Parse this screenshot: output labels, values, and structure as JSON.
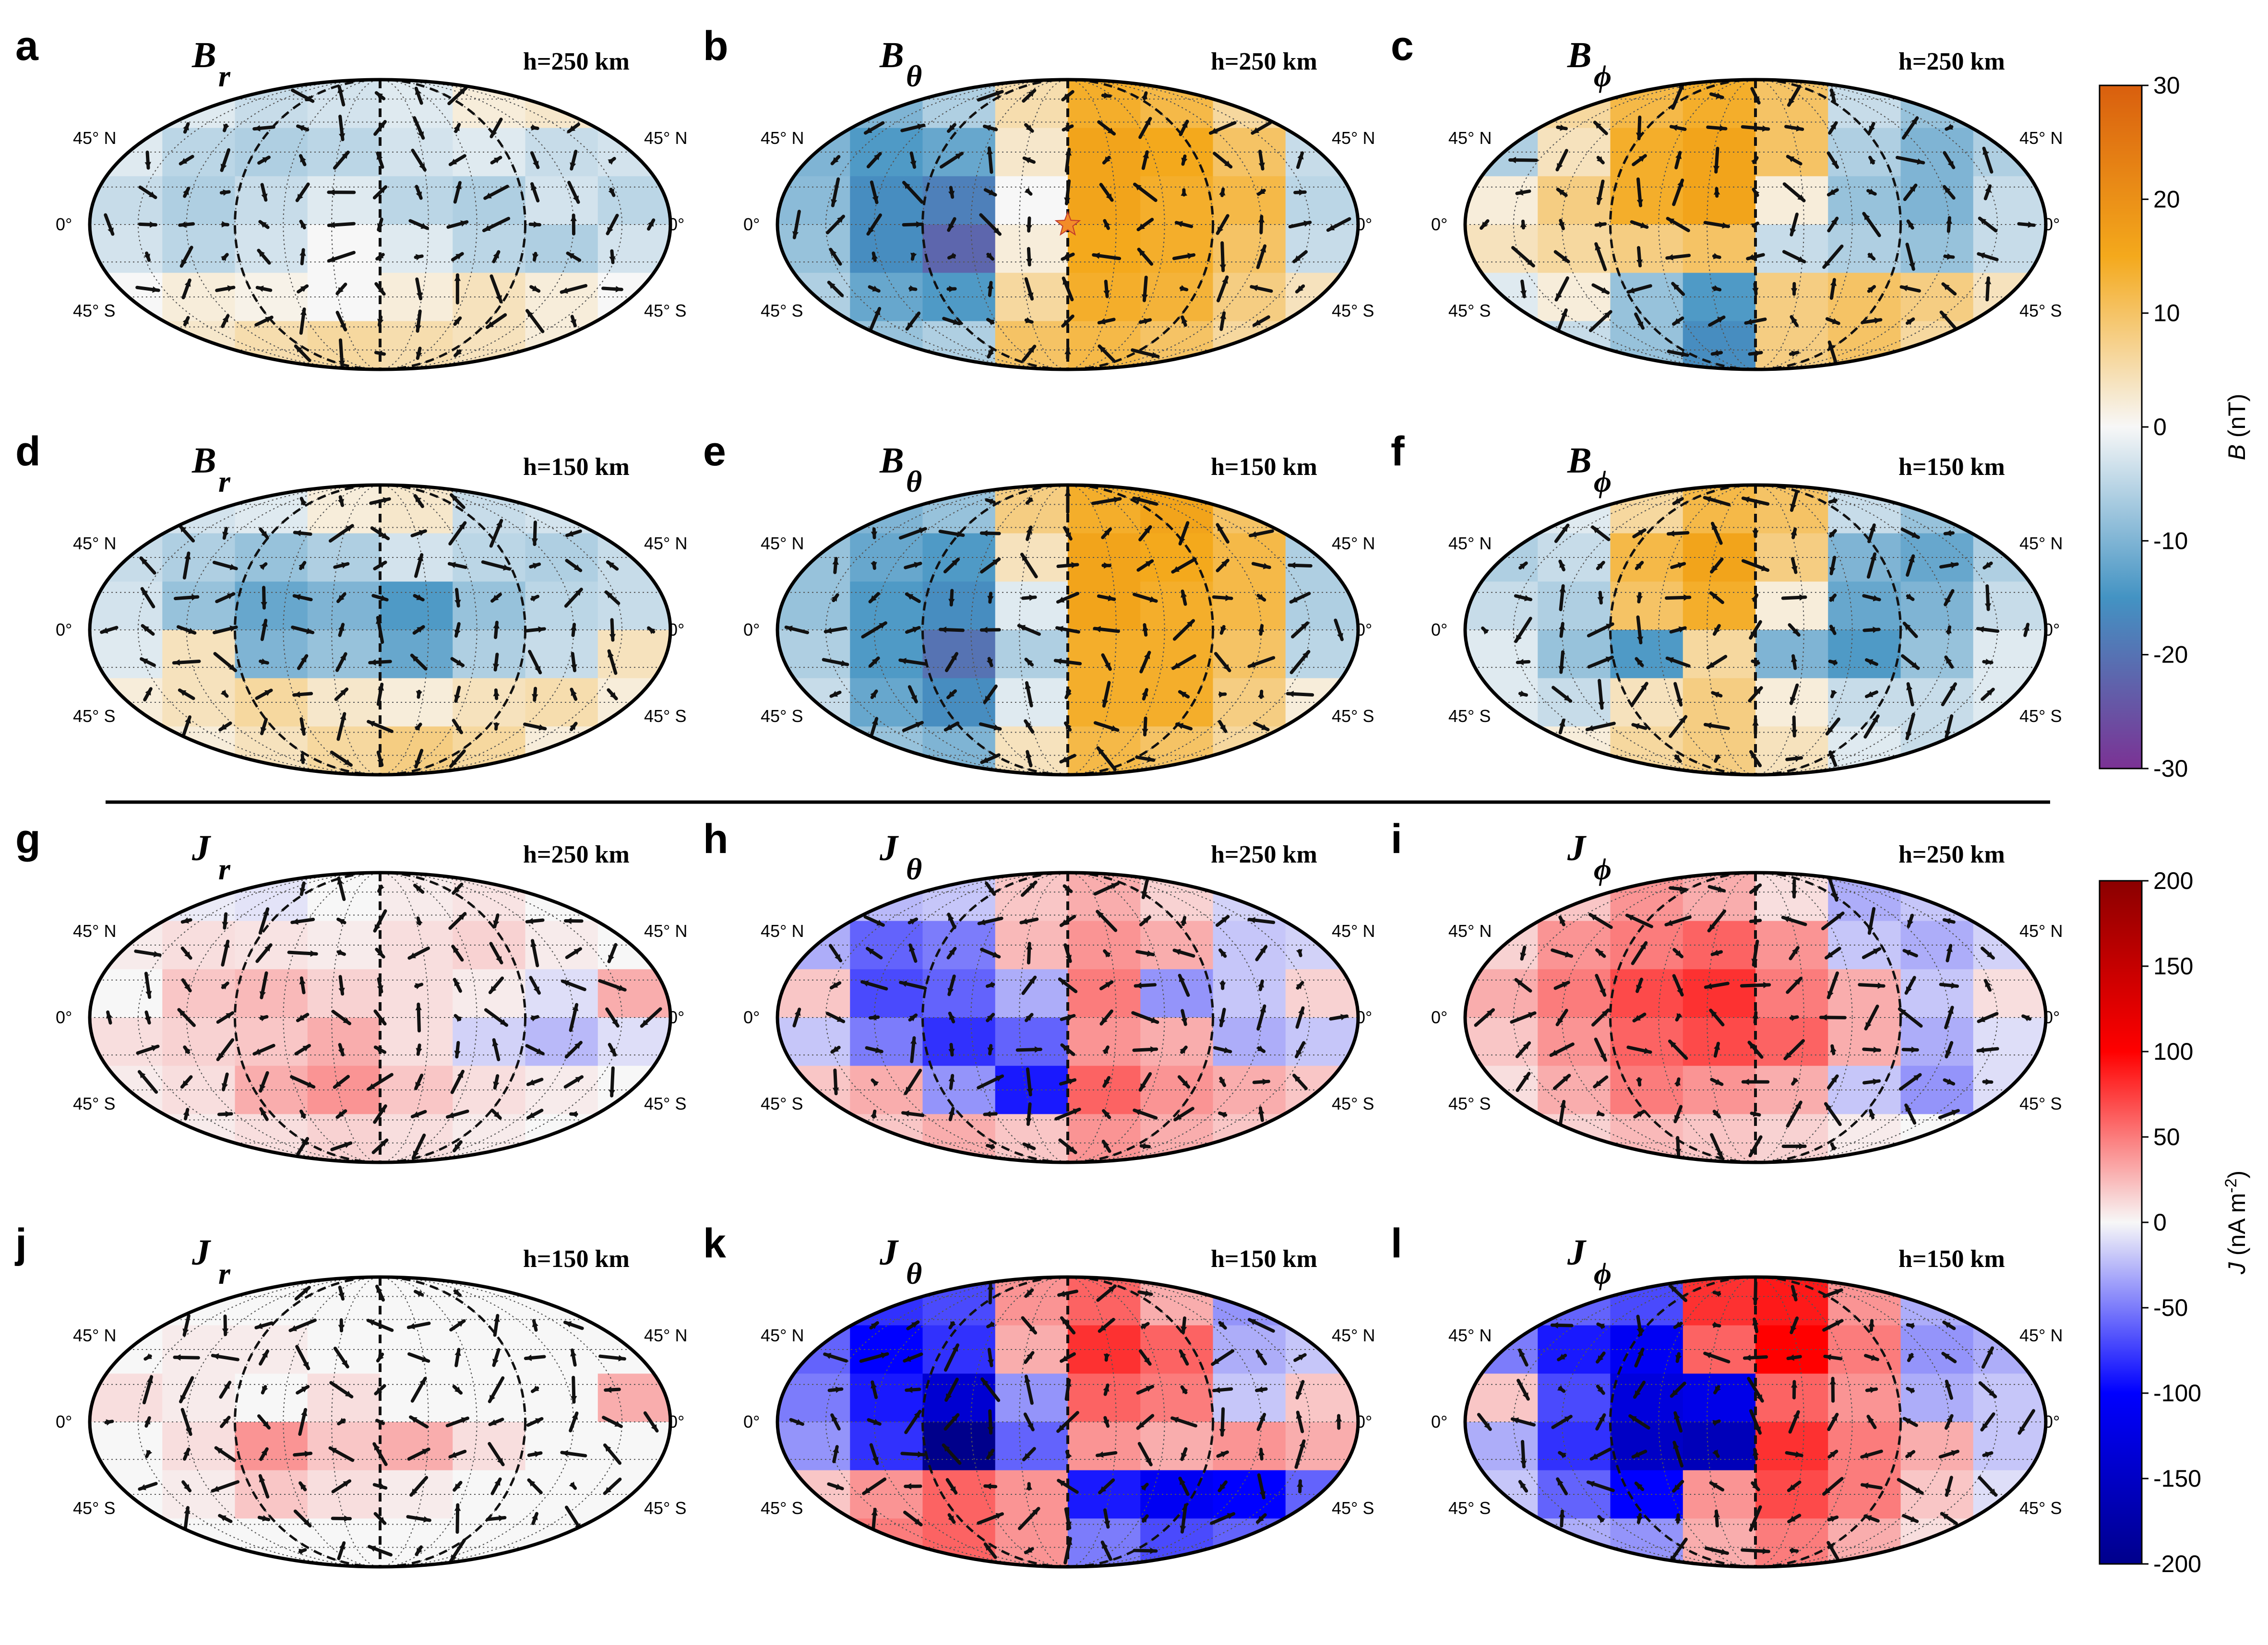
{
  "chart_data": {
    "type": "heatmap",
    "projection": "mollweide",
    "grid": true,
    "latitude_labels": [
      "45° N",
      "0°",
      "45° S"
    ],
    "colorbars": [
      {
        "id": "B",
        "label_var": "B",
        "label_unit": "(nT)",
        "range": [
          -30,
          30
        ],
        "ticks": [
          "30",
          "20",
          "10",
          "0",
          "-10",
          "-20",
          "-30"
        ],
        "colors": [
          "#7b3294",
          "#4393c3",
          "#f7f7f7",
          "#f4a91c",
          "#d95f0e"
        ]
      },
      {
        "id": "J",
        "label_var": "J",
        "label_unit": "(nA m",
        "label_sup": "-2",
        "label_close": ")",
        "range": [
          -200,
          200
        ],
        "ticks": [
          "200",
          "150",
          "100",
          "50",
          "0",
          "-50",
          "-100",
          "-150",
          "-200"
        ],
        "colors": [
          "#00008b",
          "#0000ff",
          "#f7f7f7",
          "#ff0000",
          "#8b0000"
        ]
      }
    ],
    "panels": [
      {
        "letter": "a",
        "comp": "B",
        "sub": "r",
        "height": "h=250 km",
        "cbar": "B"
      },
      {
        "letter": "b",
        "comp": "B",
        "sub": "θ",
        "height": "h=250 km",
        "cbar": "B",
        "marker": "star"
      },
      {
        "letter": "c",
        "comp": "B",
        "sub": "ϕ",
        "height": "h=250 km",
        "cbar": "B"
      },
      {
        "letter": "d",
        "comp": "B",
        "sub": "r",
        "height": "h=150 km",
        "cbar": "B"
      },
      {
        "letter": "e",
        "comp": "B",
        "sub": "θ",
        "height": "h=150 km",
        "cbar": "B"
      },
      {
        "letter": "f",
        "comp": "B",
        "sub": "ϕ",
        "height": "h=150 km",
        "cbar": "B"
      },
      {
        "letter": "g",
        "comp": "J",
        "sub": "r",
        "height": "h=250 km",
        "cbar": "J"
      },
      {
        "letter": "h",
        "comp": "J",
        "sub": "θ",
        "height": "h=250 km",
        "cbar": "J"
      },
      {
        "letter": "i",
        "comp": "J",
        "sub": "ϕ",
        "height": "h=250 km",
        "cbar": "J"
      },
      {
        "letter": "j",
        "comp": "J",
        "sub": "r",
        "height": "h=150 km",
        "cbar": "J"
      },
      {
        "letter": "k",
        "comp": "J",
        "sub": "θ",
        "height": "h=150 km",
        "cbar": "J"
      },
      {
        "letter": "l",
        "comp": "J",
        "sub": "ϕ",
        "height": "h=150 km",
        "cbar": "J"
      }
    ],
    "fields": {
      "a": [
        [
          0,
          -2,
          -4,
          -3,
          -2,
          2,
          3,
          -2
        ],
        [
          -2,
          -5,
          -6,
          -5,
          -3,
          -2,
          -4,
          -3
        ],
        [
          -4,
          -6,
          -4,
          -2,
          -5,
          -6,
          -3,
          -5
        ],
        [
          -3,
          -5,
          -3,
          0,
          -2,
          -5,
          -6,
          -3
        ],
        [
          0,
          2,
          1,
          0,
          2,
          4,
          2,
          0
        ],
        [
          1,
          3,
          5,
          6,
          5,
          4,
          2,
          1
        ]
      ],
      "b": [
        [
          -8,
          -10,
          -6,
          5,
          14,
          12,
          6,
          -3
        ],
        [
          -10,
          -14,
          -12,
          3,
          16,
          15,
          10,
          -4
        ],
        [
          -9,
          -16,
          -18,
          0,
          16,
          14,
          12,
          -5
        ],
        [
          -8,
          -16,
          -22,
          2,
          15,
          14,
          10,
          -4
        ],
        [
          -6,
          -12,
          -14,
          6,
          14,
          13,
          8,
          4
        ],
        [
          -3,
          -8,
          -6,
          10,
          12,
          10,
          6,
          10
        ]
      ],
      "c": [
        [
          -4,
          6,
          12,
          14,
          10,
          -4,
          -8,
          -6
        ],
        [
          -6,
          4,
          14,
          16,
          10,
          -6,
          -10,
          -6
        ],
        [
          2,
          8,
          14,
          16,
          2,
          -8,
          -10,
          -4
        ],
        [
          4,
          6,
          8,
          10,
          -4,
          -6,
          -8,
          -4
        ],
        [
          -2,
          2,
          -8,
          -14,
          8,
          10,
          8,
          4
        ],
        [
          0,
          -4,
          -8,
          -16,
          8,
          10,
          6,
          2
        ]
      ],
      "d": [
        [
          -2,
          -3,
          -2,
          2,
          3,
          -4,
          -3,
          -2
        ],
        [
          -4,
          -6,
          -8,
          -6,
          -3,
          -5,
          -6,
          -4
        ],
        [
          -3,
          -8,
          -12,
          -10,
          -14,
          -8,
          -5,
          -4
        ],
        [
          -2,
          4,
          -10,
          -8,
          -12,
          -6,
          -4,
          4
        ],
        [
          2,
          4,
          6,
          3,
          2,
          4,
          5,
          2
        ],
        [
          0,
          2,
          4,
          6,
          8,
          6,
          2,
          0
        ]
      ],
      "e": [
        [
          -6,
          -10,
          -8,
          8,
          14,
          16,
          10,
          -4
        ],
        [
          -8,
          -12,
          -14,
          4,
          16,
          15,
          12,
          -6
        ],
        [
          -8,
          -14,
          -16,
          -2,
          16,
          14,
          12,
          -6
        ],
        [
          -6,
          -14,
          -20,
          -6,
          14,
          14,
          10,
          -5
        ],
        [
          -4,
          -12,
          -16,
          -2,
          14,
          14,
          8,
          2
        ],
        [
          -2,
          -8,
          -10,
          4,
          12,
          10,
          6,
          4
        ]
      ],
      "f": [
        [
          -4,
          -2,
          6,
          12,
          10,
          -4,
          -8,
          -6
        ],
        [
          -6,
          -4,
          12,
          16,
          8,
          -10,
          -12,
          -6
        ],
        [
          -4,
          -6,
          10,
          14,
          2,
          -12,
          -10,
          -4
        ],
        [
          -2,
          -8,
          -14,
          6,
          -10,
          -14,
          -8,
          -2
        ],
        [
          -2,
          -4,
          4,
          8,
          2,
          -4,
          -4,
          -2
        ],
        [
          0,
          2,
          6,
          8,
          4,
          -2,
          -4,
          0
        ]
      ],
      "g": [
        [
          0,
          -5,
          -8,
          0,
          5,
          8,
          0,
          0
        ],
        [
          5,
          10,
          8,
          5,
          10,
          15,
          5,
          0
        ],
        [
          0,
          20,
          25,
          15,
          10,
          5,
          -10,
          30
        ],
        [
          10,
          15,
          20,
          30,
          10,
          -15,
          -25,
          -10
        ],
        [
          5,
          10,
          30,
          40,
          20,
          10,
          5,
          0
        ],
        [
          0,
          5,
          10,
          15,
          10,
          5,
          0,
          0
        ]
      ],
      "h": [
        [
          -15,
          -25,
          -20,
          20,
          30,
          15,
          -15,
          -10
        ],
        [
          -30,
          -60,
          -50,
          25,
          40,
          30,
          -20,
          -15
        ],
        [
          20,
          -70,
          -60,
          -30,
          50,
          -40,
          -20,
          15
        ],
        [
          -20,
          -50,
          -80,
          -60,
          40,
          30,
          -30,
          -20
        ],
        [
          20,
          30,
          -40,
          -90,
          60,
          40,
          30,
          20
        ],
        [
          10,
          20,
          30,
          20,
          40,
          30,
          20,
          10
        ]
      ],
      "i": [
        [
          -10,
          20,
          40,
          30,
          10,
          -30,
          -20,
          -10
        ],
        [
          15,
          40,
          50,
          60,
          40,
          -20,
          -30,
          -15
        ],
        [
          30,
          50,
          70,
          80,
          50,
          30,
          -20,
          10
        ],
        [
          20,
          40,
          60,
          70,
          60,
          30,
          -30,
          -10
        ],
        [
          10,
          30,
          50,
          40,
          30,
          -20,
          -40,
          -10
        ],
        [
          5,
          15,
          25,
          20,
          15,
          5,
          0,
          0
        ]
      ],
      "j": [
        [
          0,
          0,
          0,
          0,
          0,
          0,
          0,
          0
        ],
        [
          0,
          5,
          5,
          0,
          0,
          0,
          0,
          0
        ],
        [
          10,
          5,
          0,
          10,
          0,
          0,
          0,
          30
        ],
        [
          0,
          10,
          40,
          20,
          30,
          10,
          0,
          0
        ],
        [
          0,
          5,
          20,
          10,
          5,
          0,
          0,
          0
        ],
        [
          0,
          0,
          0,
          0,
          0,
          0,
          0,
          0
        ]
      ],
      "k": [
        [
          -40,
          -80,
          -70,
          40,
          60,
          30,
          -40,
          -30
        ],
        [
          -60,
          -100,
          -80,
          30,
          80,
          60,
          -30,
          -20
        ],
        [
          -50,
          -90,
          -140,
          -40,
          60,
          50,
          -20,
          20
        ],
        [
          -40,
          -80,
          -200,
          -60,
          40,
          30,
          40,
          30
        ],
        [
          20,
          40,
          60,
          40,
          -90,
          -110,
          -100,
          -60
        ],
        [
          30,
          50,
          60,
          40,
          -50,
          -70,
          -60,
          -40
        ]
      ],
      "l": [
        [
          -30,
          -60,
          -70,
          80,
          90,
          40,
          -30,
          -20
        ],
        [
          -50,
          -90,
          -110,
          60,
          100,
          50,
          -40,
          -30
        ],
        [
          20,
          -70,
          -130,
          -120,
          60,
          40,
          -30,
          -20
        ],
        [
          -30,
          -80,
          -150,
          -160,
          80,
          50,
          30,
          -20
        ],
        [
          -20,
          -60,
          -100,
          40,
          70,
          50,
          20,
          -10
        ],
        [
          -10,
          -30,
          -40,
          30,
          50,
          30,
          10,
          0
        ]
      ]
    }
  }
}
